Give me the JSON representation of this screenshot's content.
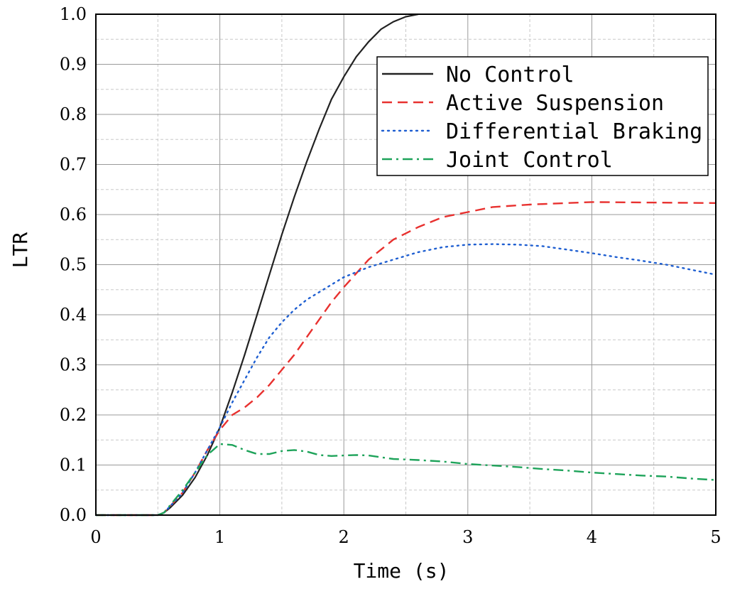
{
  "chart_data": {
    "type": "line",
    "xlabel": "Time (s)",
    "ylabel": "LTR",
    "xlim": [
      0,
      5
    ],
    "ylim": [
      0,
      1
    ],
    "x_ticks": [
      "0",
      "1",
      "2",
      "3",
      "4",
      "5"
    ],
    "y_ticks": [
      "0.0",
      "0.1",
      "0.2",
      "0.3",
      "0.4",
      "0.5",
      "0.6",
      "0.7",
      "0.8",
      "0.9",
      "1.0"
    ],
    "grid": true,
    "legend_position": "top-right",
    "series": [
      {
        "name": "No Control",
        "color": "#222222",
        "dash": "solid",
        "points": [
          [
            0,
            0
          ],
          [
            0.5,
            0
          ],
          [
            0.55,
            0.005
          ],
          [
            0.6,
            0.015
          ],
          [
            0.7,
            0.04
          ],
          [
            0.8,
            0.075
          ],
          [
            0.9,
            0.12
          ],
          [
            1.0,
            0.175
          ],
          [
            1.1,
            0.245
          ],
          [
            1.2,
            0.32
          ],
          [
            1.3,
            0.4
          ],
          [
            1.4,
            0.48
          ],
          [
            1.5,
            0.56
          ],
          [
            1.6,
            0.635
          ],
          [
            1.7,
            0.705
          ],
          [
            1.8,
            0.77
          ],
          [
            1.9,
            0.83
          ],
          [
            2.0,
            0.875
          ],
          [
            2.1,
            0.915
          ],
          [
            2.2,
            0.945
          ],
          [
            2.3,
            0.97
          ],
          [
            2.4,
            0.985
          ],
          [
            2.5,
            0.995
          ],
          [
            2.6,
            1.0
          ]
        ]
      },
      {
        "name": "Active Suspension",
        "color": "#e8312f",
        "dash": "dashed",
        "points": [
          [
            0,
            0
          ],
          [
            0.5,
            0
          ],
          [
            0.55,
            0.005
          ],
          [
            0.6,
            0.018
          ],
          [
            0.7,
            0.045
          ],
          [
            0.8,
            0.085
          ],
          [
            0.9,
            0.13
          ],
          [
            1.0,
            0.17
          ],
          [
            1.1,
            0.2
          ],
          [
            1.2,
            0.215
          ],
          [
            1.3,
            0.235
          ],
          [
            1.4,
            0.26
          ],
          [
            1.5,
            0.29
          ],
          [
            1.6,
            0.32
          ],
          [
            1.7,
            0.355
          ],
          [
            1.8,
            0.39
          ],
          [
            1.9,
            0.425
          ],
          [
            2.0,
            0.455
          ],
          [
            2.2,
            0.51
          ],
          [
            2.4,
            0.55
          ],
          [
            2.6,
            0.575
          ],
          [
            2.8,
            0.595
          ],
          [
            3.0,
            0.605
          ],
          [
            3.2,
            0.615
          ],
          [
            3.5,
            0.62
          ],
          [
            4.0,
            0.625
          ],
          [
            4.5,
            0.624
          ],
          [
            5.0,
            0.623
          ]
        ]
      },
      {
        "name": "Differential Braking",
        "color": "#1f5fd1",
        "dash": "dotted",
        "points": [
          [
            0,
            0
          ],
          [
            0.5,
            0
          ],
          [
            0.55,
            0.005
          ],
          [
            0.6,
            0.018
          ],
          [
            0.7,
            0.045
          ],
          [
            0.8,
            0.085
          ],
          [
            0.9,
            0.13
          ],
          [
            1.0,
            0.175
          ],
          [
            1.1,
            0.225
          ],
          [
            1.2,
            0.27
          ],
          [
            1.3,
            0.315
          ],
          [
            1.4,
            0.355
          ],
          [
            1.5,
            0.385
          ],
          [
            1.6,
            0.41
          ],
          [
            1.7,
            0.43
          ],
          [
            1.8,
            0.445
          ],
          [
            1.9,
            0.46
          ],
          [
            2.0,
            0.475
          ],
          [
            2.2,
            0.495
          ],
          [
            2.4,
            0.51
          ],
          [
            2.6,
            0.525
          ],
          [
            2.8,
            0.535
          ],
          [
            3.0,
            0.54
          ],
          [
            3.2,
            0.541
          ],
          [
            3.4,
            0.54
          ],
          [
            3.6,
            0.537
          ],
          [
            3.8,
            0.53
          ],
          [
            4.0,
            0.523
          ],
          [
            4.2,
            0.515
          ],
          [
            4.4,
            0.508
          ],
          [
            4.6,
            0.5
          ],
          [
            4.8,
            0.49
          ],
          [
            5.0,
            0.48
          ]
        ]
      },
      {
        "name": "Joint Control",
        "color": "#1ea35a",
        "dash": "dashdot",
        "points": [
          [
            0,
            0
          ],
          [
            0.5,
            0
          ],
          [
            0.55,
            0.005
          ],
          [
            0.6,
            0.02
          ],
          [
            0.7,
            0.05
          ],
          [
            0.8,
            0.085
          ],
          [
            0.9,
            0.12
          ],
          [
            1.0,
            0.142
          ],
          [
            1.1,
            0.14
          ],
          [
            1.2,
            0.13
          ],
          [
            1.3,
            0.122
          ],
          [
            1.4,
            0.122
          ],
          [
            1.5,
            0.128
          ],
          [
            1.6,
            0.13
          ],
          [
            1.7,
            0.127
          ],
          [
            1.8,
            0.12
          ],
          [
            1.9,
            0.118
          ],
          [
            2.0,
            0.119
          ],
          [
            2.1,
            0.12
          ],
          [
            2.2,
            0.119
          ],
          [
            2.4,
            0.112
          ],
          [
            2.6,
            0.11
          ],
          [
            2.8,
            0.107
          ],
          [
            3.0,
            0.102
          ],
          [
            3.2,
            0.099
          ],
          [
            3.4,
            0.096
          ],
          [
            3.6,
            0.092
          ],
          [
            3.8,
            0.089
          ],
          [
            4.0,
            0.085
          ],
          [
            4.2,
            0.082
          ],
          [
            4.4,
            0.079
          ],
          [
            4.6,
            0.077
          ],
          [
            4.8,
            0.073
          ],
          [
            5.0,
            0.07
          ]
        ]
      }
    ]
  }
}
